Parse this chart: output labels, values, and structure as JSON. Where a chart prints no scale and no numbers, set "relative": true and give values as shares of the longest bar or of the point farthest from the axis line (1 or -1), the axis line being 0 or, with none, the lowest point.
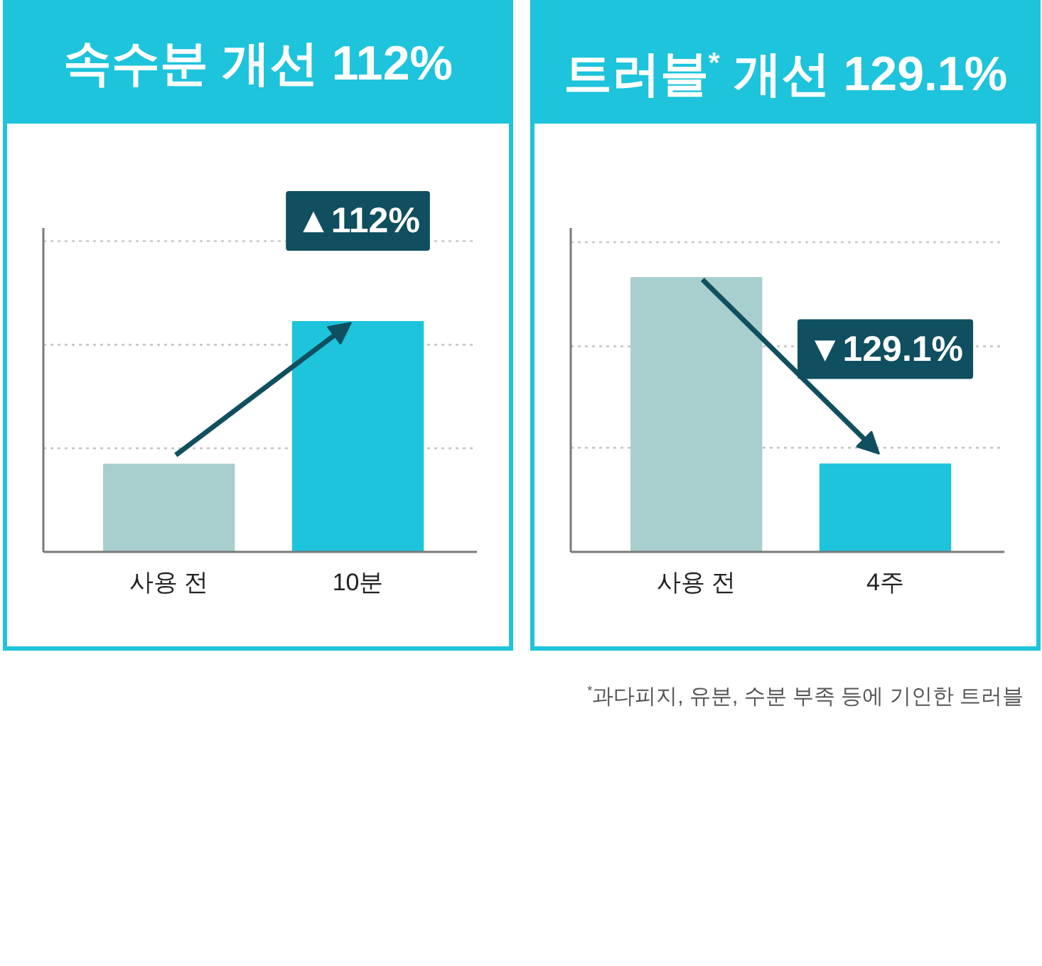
{
  "chart_data": [
    {
      "type": "bar",
      "title": "속수분 개선 112%",
      "categories": [
        "사용 전",
        "10분"
      ],
      "values": [
        0.38,
        1
      ],
      "colors": [
        "#a8cfcd",
        "#1ec3dc"
      ],
      "relative": true,
      "ref_lines": [
        {
          "axis": "y",
          "value": 0.45,
          "color": "#c8c8c8",
          "line_style": "dotted"
        },
        {
          "axis": "y",
          "value": 0.9,
          "color": "#c8c8c8",
          "line_style": "dotted"
        },
        {
          "axis": "y",
          "value": 1.35,
          "color": "#c8c8c8",
          "line_style": "dotted"
        }
      ],
      "annotations": [
        {
          "text": "▲112%",
          "x": "10분",
          "y": 1
        }
      ]
    },
    {
      "type": "bar",
      "title": "트러블$^{*}$ 개선 129.1%",
      "categories": [
        "사용 전",
        "4주"
      ],
      "values": [
        1,
        0.32
      ],
      "colors": [
        "#a8cfcd",
        "#1ec3dc"
      ],
      "relative": true,
      "ref_lines": [
        {
          "axis": "y",
          "value": 0.38,
          "color": "#c8c8c8",
          "line_style": "dotted"
        },
        {
          "axis": "y",
          "value": 0.75,
          "color": "#c8c8c8",
          "line_style": "dotted"
        },
        {
          "axis": "y",
          "value": 1.13,
          "color": "#c8c8c8",
          "line_style": "dotted"
        }
      ],
      "annotations": [
        {
          "text": "▼129.1%",
          "x": "4주",
          "y": 0.32
        },
        "$^{*}$과다피지, 유분, 수분 부족 등에 기인한 트러블"
      ]
    }
  ]
}
